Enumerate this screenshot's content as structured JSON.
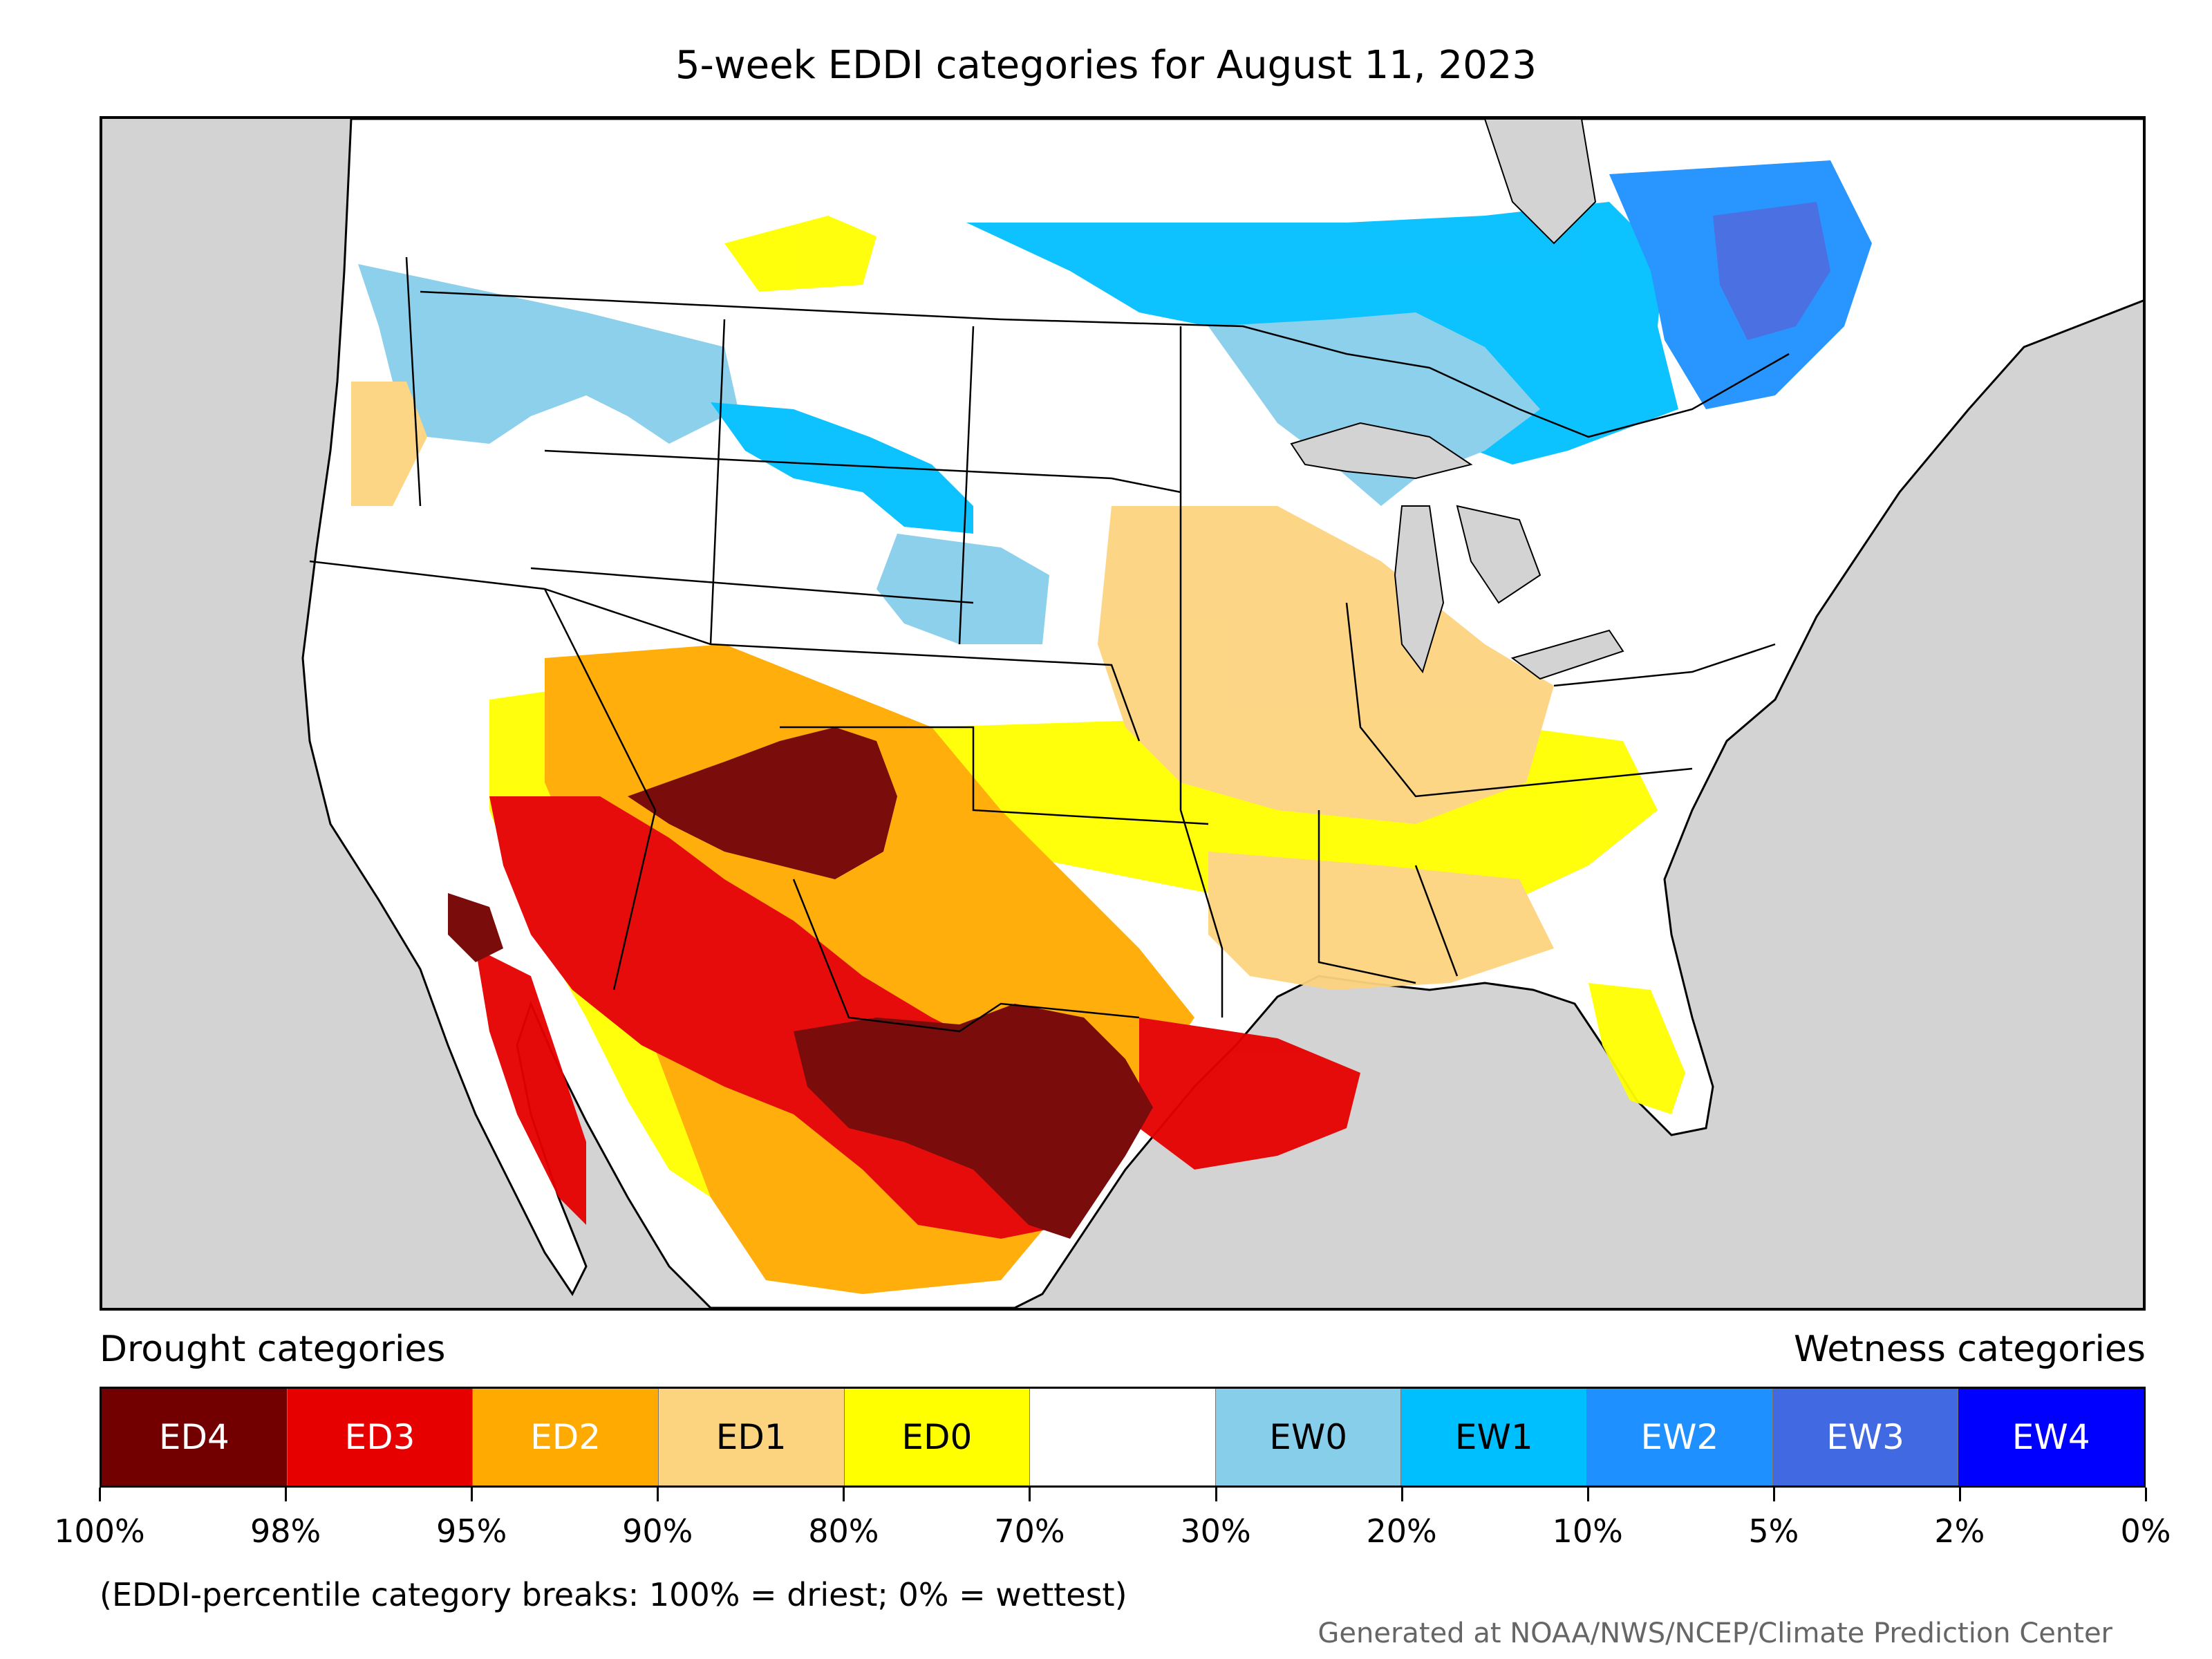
{
  "title": "5-week EDDI categories for August 11, 2023",
  "legend": {
    "drought_heading": "Drought categories",
    "wetness_heading": "Wetness categories",
    "categories": [
      {
        "label": "ED4",
        "color": "#730000",
        "text_color": "#ffffff"
      },
      {
        "label": "ED3",
        "color": "#e60000",
        "text_color": "#ffffff"
      },
      {
        "label": "ED2",
        "color": "#ffaa00",
        "text_color": "#ffffff"
      },
      {
        "label": "ED1",
        "color": "#fcd37f",
        "text_color": "#000000"
      },
      {
        "label": "ED0",
        "color": "#ffff00",
        "text_color": "#000000"
      },
      {
        "label": "",
        "color": "#ffffff",
        "text_color": "#000000"
      },
      {
        "label": "EW0",
        "color": "#87ceeb",
        "text_color": "#000000"
      },
      {
        "label": "EW1",
        "color": "#00bfff",
        "text_color": "#000000"
      },
      {
        "label": "EW2",
        "color": "#1e90ff",
        "text_color": "#ffffff"
      },
      {
        "label": "EW3",
        "color": "#4169e1",
        "text_color": "#ffffff"
      },
      {
        "label": "EW4",
        "color": "#0000ff",
        "text_color": "#ffffff"
      }
    ],
    "tick_labels": [
      "100%",
      "98%",
      "95%",
      "90%",
      "80%",
      "70%",
      "30%",
      "20%",
      "10%",
      "5%",
      "2%",
      "0%"
    ]
  },
  "footnote": "(EDDI-percentile category breaks: 100% = driest; 0% = wettest)",
  "credit": "Generated at NOAA/NWS/NCEP/Climate Prediction Center",
  "map": {
    "background_color": "#d3d3d3",
    "land_color": "#ffffff",
    "regions": [
      {
        "name": "pacific-northwest",
        "category": "EW0"
      },
      {
        "name": "northern-rockies",
        "category": "EW1"
      },
      {
        "name": "ontario-quebec",
        "category": "EW1"
      },
      {
        "name": "quebec-core",
        "category": "EW2"
      },
      {
        "name": "southwest",
        "category": "ED4"
      },
      {
        "name": "texas",
        "category": "ED4"
      },
      {
        "name": "gulf-coast",
        "category": "ED3"
      },
      {
        "name": "midwest",
        "category": "ED1"
      },
      {
        "name": "southeast",
        "category": "ED0"
      }
    ]
  }
}
